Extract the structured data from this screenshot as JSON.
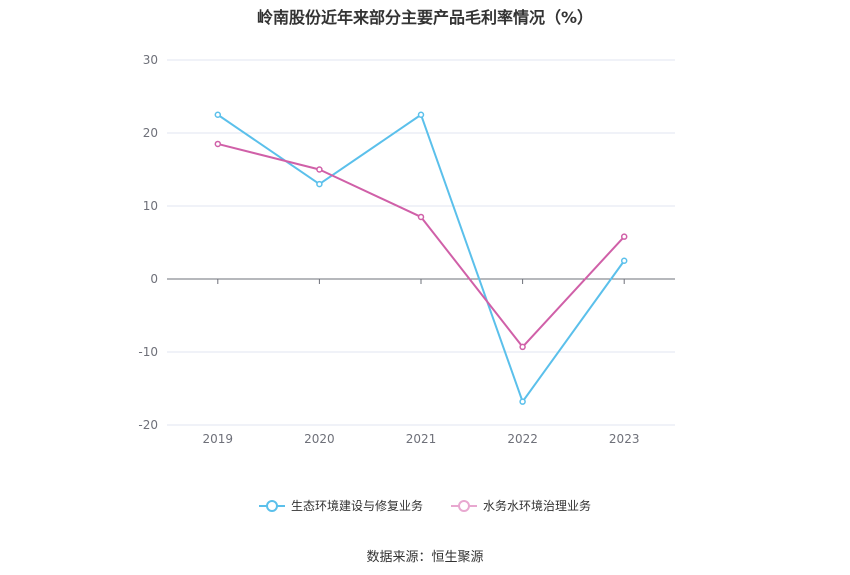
{
  "chart_data": {
    "type": "line",
    "title": "岭南股份近年来部分主要产品毛利率情况（%）",
    "x": [
      "2019",
      "2020",
      "2021",
      "2022",
      "2023"
    ],
    "ylim": [
      -20,
      30
    ],
    "yticks": [
      -20,
      -10,
      0,
      10,
      20,
      30
    ],
    "grid": true,
    "legend_position": "bottom",
    "series": [
      {
        "name": "生态环境建设与修复业务",
        "values": [
          22.5,
          13.0,
          22.5,
          -16.8,
          2.5
        ],
        "color": "#5bc0eb"
      },
      {
        "name": "水务水环境治理业务",
        "values": [
          18.5,
          15.0,
          8.5,
          -9.3,
          5.8
        ],
        "color": "#d060a8"
      }
    ]
  },
  "legend": {
    "items": [
      {
        "label": "生态环境建设与修复业务",
        "color": "#5bc0eb"
      },
      {
        "label": "水务水环境治理业务",
        "color": "#e8a8d0"
      }
    ]
  },
  "source": "数据来源：恒生聚源"
}
